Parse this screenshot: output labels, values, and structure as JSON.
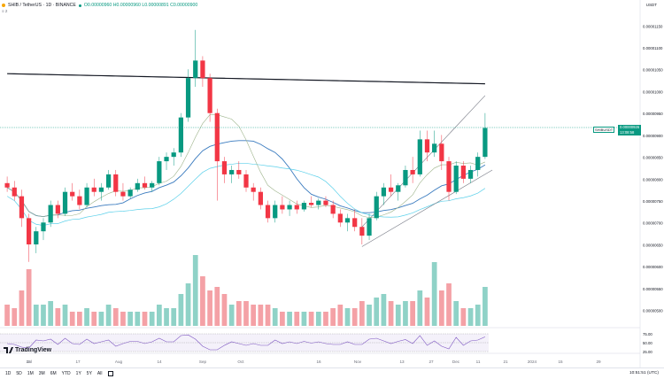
{
  "header": {
    "symbol": "SHIB / TetherUS · 1D · BINANCE",
    "ohlc": "O0.00000960 H0.00000960 L0.00000891 C0.00000900",
    "sub": "≡ 2",
    "currency": "USDT"
  },
  "price_tags": {
    "symbol": "SHIBUSDT",
    "price": "0.00000926",
    "countdown": "13:08:58"
  },
  "colors": {
    "up": "#089981",
    "down": "#f23645",
    "up_vol": "#8fd2c7",
    "down_vol": "#f4a1a6",
    "ma_black": "#131722",
    "ma_blue": "#3a7bbf",
    "ma_cyan": "#5bd0ea",
    "ma_olive": "#9eb48c",
    "rsi": "#7e57c2"
  },
  "price_axis": [
    "0.00001150",
    "0.00001100",
    "0.00001050",
    "0.00001000",
    "0.00000950",
    "0.00000900",
    "0.00000850",
    "0.00000800",
    "0.00000750",
    "0.00000700",
    "0.00000650",
    "0.00000600",
    "0.00000550",
    "0.00000500"
  ],
  "rsi_axis": [
    "75.00",
    "50.00",
    "25.00"
  ],
  "time_axis": [
    "12",
    "Jul",
    "17",
    "Aug",
    "14",
    "Sep",
    "Oct",
    "16",
    "Nov",
    "13",
    "27",
    "Dec",
    "11",
    "21",
    "2024",
    "15",
    "29"
  ],
  "branding": {
    "logo_text": "TradingView"
  },
  "bottom_bar": {
    "ranges": [
      "1D",
      "5D",
      "1M",
      "3M",
      "6M",
      "YTD",
      "1Y",
      "5Y",
      "All"
    ],
    "clock": "10:51:51 (UTC)"
  },
  "chart_data": {
    "type": "candlestick",
    "timeframe": "1D",
    "y_range": [
      4.8e-06,
      1.19e-05
    ],
    "candles": [
      [
        8e-06,
        8.15e-06,
        7.8e-06,
        7.9e-06
      ],
      [
        7.9e-06,
        8.05e-06,
        7.6e-06,
        7.7e-06
      ],
      [
        7.7e-06,
        7.85e-06,
        7e-06,
        7.2e-06
      ],
      [
        7.2e-06,
        7.3e-06,
        6.2e-06,
        6.6e-06
      ],
      [
        6.6e-06,
        7e-06,
        6.4e-06,
        6.9e-06
      ],
      [
        6.9e-06,
        7.2e-06,
        6.7e-06,
        7.1e-06
      ],
      [
        7.1e-06,
        7.6e-06,
        7e-06,
        7.5e-06
      ],
      [
        7.5e-06,
        7.6e-06,
        7.2e-06,
        7.3e-06
      ],
      [
        7.3e-06,
        7.9e-06,
        7.25e-06,
        7.8e-06
      ],
      [
        7.8e-06,
        8e-06,
        7.6e-06,
        7.7e-06
      ],
      [
        7.7e-06,
        7.85e-06,
        7.4e-06,
        7.5e-06
      ],
      [
        7.5e-06,
        8e-06,
        7.45e-06,
        7.9e-06
      ],
      [
        7.9e-06,
        8.1e-06,
        7.7e-06,
        7.8e-06
      ],
      [
        7.8e-06,
        8e-06,
        7.6e-06,
        7.9e-06
      ],
      [
        7.9e-06,
        8.3e-06,
        7.85e-06,
        8.2e-06
      ],
      [
        8.2e-06,
        8.3e-06,
        7.7e-06,
        7.8e-06
      ],
      [
        7.8e-06,
        8e-06,
        7.6e-06,
        7.7e-06
      ],
      [
        7.7e-06,
        7.9e-06,
        7.65e-06,
        7.85e-06
      ],
      [
        7.85e-06,
        8.1e-06,
        7.8e-06,
        8e-06
      ],
      [
        8e-06,
        8.15e-06,
        7.85e-06,
        7.9e-06
      ],
      [
        7.9e-06,
        8.05e-06,
        7.8e-06,
        8e-06
      ],
      [
        8e-06,
        8.6e-06,
        7.95e-06,
        8.5e-06
      ],
      [
        8.5e-06,
        8.7e-06,
        8.3e-06,
        8.6e-06
      ],
      [
        8.6e-06,
        8.8e-06,
        8.4e-06,
        8.7e-06
      ],
      [
        8.7e-06,
        9.6e-06,
        8.6e-06,
        9.5e-06
      ],
      [
        9.5e-06,
        1.06e-05,
        9.4e-06,
        1.04e-05
      ],
      [
        1.04e-05,
        1.15e-05,
        1.02e-05,
        1.08e-05
      ],
      [
        1.08e-05,
        1.09e-05,
        1.02e-05,
        1.04e-05
      ],
      [
        1.04e-05,
        1.05e-05,
        9.4e-06,
        9.6e-06
      ],
      [
        9.6e-06,
        9.7e-06,
        7.6e-06,
        8.5e-06
      ],
      [
        8.5e-06,
        8.6e-06,
        8e-06,
        8.2e-06
      ],
      [
        8.2e-06,
        8.4e-06,
        8e-06,
        8.3e-06
      ],
      [
        8.3e-06,
        8.5e-06,
        8.1e-06,
        8.2e-06
      ],
      [
        8.2e-06,
        8.3e-06,
        7.8e-06,
        7.9e-06
      ],
      [
        7.9e-06,
        8e-06,
        7.6e-06,
        7.8e-06
      ],
      [
        7.8e-06,
        7.9e-06,
        7.4e-06,
        7.5e-06
      ],
      [
        7.5e-06,
        7.6e-06,
        7.1e-06,
        7.2e-06
      ],
      [
        7.2e-06,
        7.6e-06,
        7.1e-06,
        7.5e-06
      ],
      [
        7.5e-06,
        7.7e-06,
        7.3e-06,
        7.4e-06
      ],
      [
        7.4e-06,
        7.6e-06,
        7.25e-06,
        7.5e-06
      ],
      [
        7.5e-06,
        7.6e-06,
        7.3e-06,
        7.4e-06
      ],
      [
        7.4e-06,
        7.6e-06,
        7.35e-06,
        7.55e-06
      ],
      [
        7.55e-06,
        7.7e-06,
        7.45e-06,
        7.5e-06
      ],
      [
        7.5e-06,
        7.65e-06,
        7.4e-06,
        7.6e-06
      ],
      [
        7.6e-06,
        7.7e-06,
        7.45e-06,
        7.5e-06
      ],
      [
        7.5e-06,
        7.6e-06,
        7.2e-06,
        7.3e-06
      ],
      [
        7.3e-06,
        7.4e-06,
        7e-06,
        7.1e-06
      ],
      [
        7.1e-06,
        7.3e-06,
        6.9e-06,
        7.2e-06
      ],
      [
        7.2e-06,
        7.4e-06,
        6.9e-06,
        7e-06
      ],
      [
        7e-06,
        7.2e-06,
        6.6e-06,
        6.8e-06
      ],
      [
        6.8e-06,
        7.3e-06,
        6.7e-06,
        7.2e-06
      ],
      [
        7.2e-06,
        7.8e-06,
        7.15e-06,
        7.7e-06
      ],
      [
        7.7e-06,
        8e-06,
        7.5e-06,
        7.9e-06
      ],
      [
        7.9e-06,
        8.2e-06,
        7.7e-06,
        7.8e-06
      ],
      [
        7.8e-06,
        8e-06,
        7.6e-06,
        7.95e-06
      ],
      [
        7.95e-06,
        8.4e-06,
        7.9e-06,
        8.3e-06
      ],
      [
        8.3e-06,
        8.6e-06,
        8e-06,
        8.2e-06
      ],
      [
        8.2e-06,
        9.2e-06,
        8.15e-06,
        9e-06
      ],
      [
        9e-06,
        9.2e-06,
        8.5e-06,
        8.7e-06
      ],
      [
        8.7e-06,
        9.2e-06,
        8.6e-06,
        8.9e-06
      ],
      [
        8.9e-06,
        9.1e-06,
        8.3e-06,
        8.5e-06
      ],
      [
        8.5e-06,
        8.6e-06,
        7.6e-06,
        7.8e-06
      ],
      [
        7.8e-06,
        8.5e-06,
        7.75e-06,
        8.4e-06
      ],
      [
        8.4e-06,
        8.5e-06,
        8e-06,
        8.1e-06
      ],
      [
        8.1e-06,
        8.4e-06,
        8e-06,
        8.3e-06
      ],
      [
        8.3e-06,
        8.7e-06,
        8.15e-06,
        8.6e-06
      ],
      [
        8.6e-06,
        9.6e-06,
        8.55e-06,
        9.26e-06
      ]
    ],
    "volume_relative": [
      0.3,
      0.25,
      0.5,
      0.8,
      0.3,
      0.3,
      0.35,
      0.25,
      0.3,
      0.2,
      0.2,
      0.25,
      0.2,
      0.2,
      0.3,
      0.25,
      0.2,
      0.2,
      0.2,
      0.2,
      0.2,
      0.3,
      0.25,
      0.25,
      0.45,
      0.6,
      1.0,
      0.7,
      0.5,
      0.55,
      0.45,
      0.3,
      0.35,
      0.35,
      0.3,
      0.3,
      0.3,
      0.25,
      0.2,
      0.2,
      0.2,
      0.2,
      0.2,
      0.2,
      0.2,
      0.25,
      0.3,
      0.25,
      0.25,
      0.35,
      0.3,
      0.4,
      0.45,
      0.35,
      0.3,
      0.35,
      0.35,
      0.5,
      0.4,
      0.9,
      0.5,
      0.6,
      0.35,
      0.25,
      0.25,
      0.3,
      0.55
    ],
    "trend_lines": [
      {
        "from_index": 49,
        "from_price": 7e-06,
        "to_index": 66,
        "to_price": 1e-05
      },
      {
        "from_index": 49,
        "from_price": 6.55e-06,
        "to_index": 67,
        "to_price": 8.3e-06
      }
    ],
    "rsi": {
      "upper": 75,
      "lower": 25,
      "mid": 50
    }
  }
}
